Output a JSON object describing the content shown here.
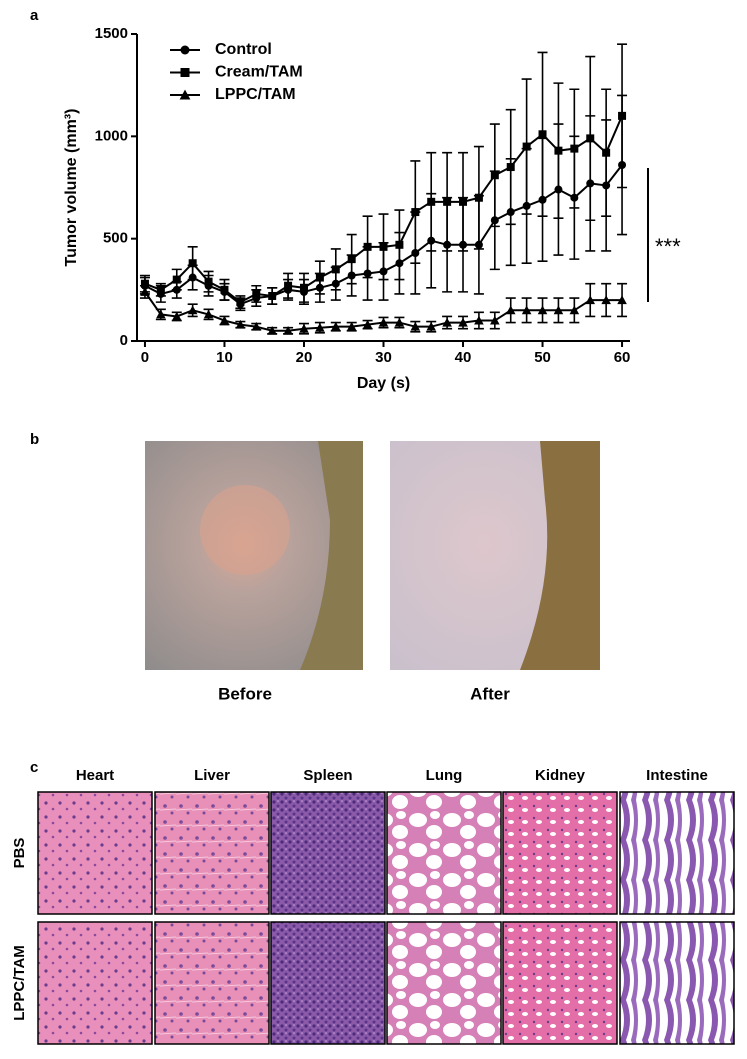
{
  "panel_labels": [
    "a",
    "b",
    "c"
  ],
  "chart_data": {
    "type": "line",
    "xlabel": "Day (s)",
    "ylabel": "Tumor volume (mm³)",
    "annotation": "***",
    "x": [
      0,
      2,
      4,
      6,
      8,
      10,
      12,
      14,
      16,
      18,
      20,
      22,
      24,
      26,
      28,
      30,
      32,
      34,
      36,
      38,
      40,
      42,
      44,
      46,
      48,
      50,
      52,
      54,
      56,
      58,
      60
    ],
    "xlim": [
      -1,
      61
    ],
    "xticks": [
      0,
      10,
      20,
      30,
      40,
      50,
      60
    ],
    "ylim": [
      0,
      1500
    ],
    "yticks": [
      0,
      500,
      1000,
      1500
    ],
    "legend": "upper left",
    "series": [
      {
        "name": "Control",
        "color": "#000000",
        "marker": "circle",
        "values": [
          270,
          230,
          250,
          310,
          270,
          240,
          180,
          210,
          220,
          250,
          240,
          260,
          280,
          320,
          330,
          340,
          380,
          430,
          490,
          470,
          470,
          470,
          590,
          630,
          660,
          690,
          740,
          700,
          770,
          760,
          860
        ],
        "errors": [
          40,
          40,
          40,
          60,
          50,
          40,
          30,
          40,
          40,
          50,
          60,
          70,
          80,
          100,
          130,
          140,
          150,
          200,
          230,
          230,
          230,
          240,
          240,
          260,
          280,
          300,
          320,
          300,
          330,
          320,
          340
        ]
      },
      {
        "name": "Cream/TAM",
        "color": "#000000",
        "marker": "square",
        "values": [
          280,
          250,
          300,
          380,
          290,
          250,
          190,
          230,
          220,
          270,
          260,
          310,
          350,
          400,
          460,
          460,
          470,
          630,
          680,
          680,
          680,
          700,
          810,
          850,
          950,
          1010,
          930,
          940,
          990,
          920,
          1100
        ],
        "errors": [
          40,
          30,
          50,
          80,
          50,
          50,
          30,
          40,
          40,
          60,
          70,
          80,
          100,
          120,
          150,
          160,
          170,
          250,
          240,
          240,
          240,
          250,
          250,
          280,
          330,
          400,
          330,
          290,
          400,
          310,
          350
        ]
      },
      {
        "name": "LPPC/TAM",
        "color": "#000000",
        "marker": "triangle",
        "values": [
          240,
          130,
          120,
          150,
          130,
          100,
          80,
          70,
          50,
          50,
          60,
          65,
          70,
          70,
          80,
          90,
          90,
          70,
          70,
          90,
          90,
          100,
          100,
          150,
          150,
          150,
          150,
          150,
          200,
          200,
          200
        ],
        "errors": [
          30,
          25,
          20,
          30,
          25,
          20,
          15,
          15,
          15,
          15,
          25,
          25,
          20,
          20,
          20,
          25,
          25,
          25,
          25,
          30,
          30,
          40,
          40,
          60,
          60,
          60,
          60,
          60,
          80,
          80,
          80
        ]
      }
    ]
  },
  "photos": {
    "labels": [
      "Before",
      "After"
    ]
  },
  "histology": {
    "columns": [
      "Heart",
      "Liver",
      "Spleen",
      "Lung",
      "Kidney",
      "Intestine"
    ],
    "rows": [
      "PBS",
      "LPPC/TAM"
    ]
  }
}
